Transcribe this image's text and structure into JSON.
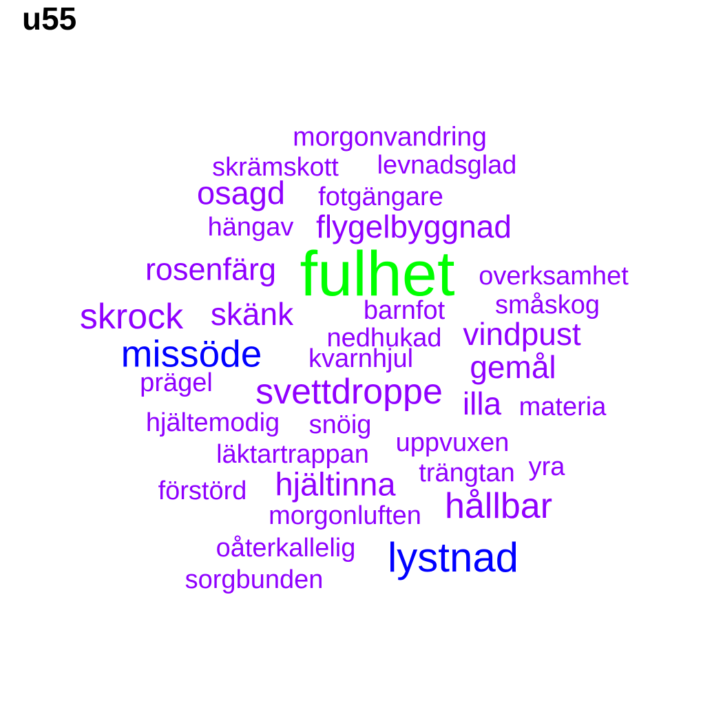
{
  "title": "u55",
  "colors": {
    "primary": "#8f00ff",
    "secondary": "#0000ff",
    "highlight": "#00ff00",
    "title": "#000000"
  },
  "words": [
    {
      "text": "morgonvandring",
      "group": "primary"
    },
    {
      "text": "skrämskott",
      "group": "primary"
    },
    {
      "text": "levnadsglad",
      "group": "primary"
    },
    {
      "text": "osagd",
      "group": "primary"
    },
    {
      "text": "fotgängare",
      "group": "primary"
    },
    {
      "text": "hängav",
      "group": "primary"
    },
    {
      "text": "flygelbyggnad",
      "group": "primary"
    },
    {
      "text": "rosenfärg",
      "group": "primary"
    },
    {
      "text": "fulhet",
      "group": "highlight"
    },
    {
      "text": "overksamhet",
      "group": "primary"
    },
    {
      "text": "småskog",
      "group": "primary"
    },
    {
      "text": "skrock",
      "group": "primary"
    },
    {
      "text": "skänk",
      "group": "primary"
    },
    {
      "text": "barnfot",
      "group": "primary"
    },
    {
      "text": "nedhukad",
      "group": "primary"
    },
    {
      "text": "vindpust",
      "group": "primary"
    },
    {
      "text": "missöde",
      "group": "secondary"
    },
    {
      "text": "kvarnhjul",
      "group": "primary"
    },
    {
      "text": "gemål",
      "group": "primary"
    },
    {
      "text": "prägel",
      "group": "primary"
    },
    {
      "text": "svettdroppe",
      "group": "primary"
    },
    {
      "text": "illa",
      "group": "primary"
    },
    {
      "text": "materia",
      "group": "primary"
    },
    {
      "text": "hjältemodig",
      "group": "primary"
    },
    {
      "text": "snöig",
      "group": "primary"
    },
    {
      "text": "uppvuxen",
      "group": "primary"
    },
    {
      "text": "läktartrappan",
      "group": "primary"
    },
    {
      "text": "trängtan",
      "group": "primary"
    },
    {
      "text": "yra",
      "group": "primary"
    },
    {
      "text": "förstörd",
      "group": "primary"
    },
    {
      "text": "hjältinna",
      "group": "primary"
    },
    {
      "text": "hållbar",
      "group": "primary"
    },
    {
      "text": "morgonluften",
      "group": "primary"
    },
    {
      "text": "oåterkallelig",
      "group": "primary"
    },
    {
      "text": "lystnad",
      "group": "secondary"
    },
    {
      "text": "sorgbunden",
      "group": "primary"
    }
  ]
}
